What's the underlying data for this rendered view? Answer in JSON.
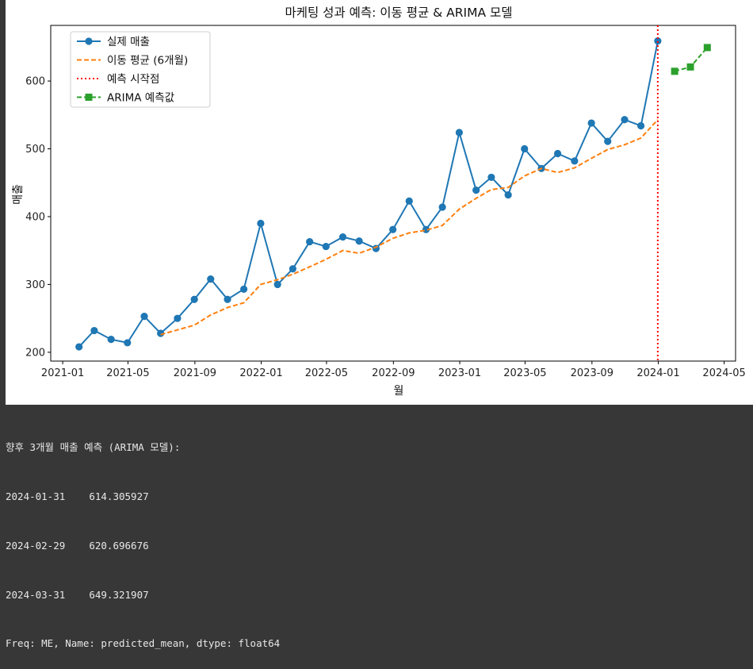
{
  "chart_data": {
    "type": "line",
    "title": "마케팅 성과 예측: 이동 평균 & ARIMA 모델",
    "xlabel": "월",
    "ylabel": "매출",
    "xlim": [
      "2020-12-10",
      "2024-05-22"
    ],
    "ylim": [
      187,
      682
    ],
    "x_ticks": [
      "2021-01",
      "2021-05",
      "2021-09",
      "2022-01",
      "2022-05",
      "2022-09",
      "2023-01",
      "2023-05",
      "2023-09",
      "2024-01",
      "2024-05"
    ],
    "y_ticks": [
      200,
      300,
      400,
      500,
      600
    ],
    "grid": false,
    "legend_position": "top-left",
    "forecast_start": "2023-12-31",
    "series": [
      {
        "name": "실제 매출",
        "color": "#1f77b4",
        "style": "solid-circle",
        "x": [
          "2021-01-31",
          "2021-02-28",
          "2021-03-31",
          "2021-04-30",
          "2021-05-31",
          "2021-06-30",
          "2021-07-31",
          "2021-08-31",
          "2021-09-30",
          "2021-10-31",
          "2021-11-30",
          "2021-12-31",
          "2022-01-31",
          "2022-02-28",
          "2022-03-31",
          "2022-04-30",
          "2022-05-31",
          "2022-06-30",
          "2022-07-31",
          "2022-08-31",
          "2022-09-30",
          "2022-10-31",
          "2022-11-30",
          "2022-12-31",
          "2023-01-31",
          "2023-02-28",
          "2023-03-31",
          "2023-04-30",
          "2023-05-31",
          "2023-06-30",
          "2023-07-31",
          "2023-08-31",
          "2023-09-30",
          "2023-10-31",
          "2023-11-30",
          "2023-12-31"
        ],
        "y": [
          208,
          232,
          219,
          214,
          253,
          228,
          250,
          278,
          308,
          278,
          293,
          390,
          300,
          323,
          363,
          356,
          370,
          364,
          353,
          381,
          423,
          381,
          414,
          524,
          439,
          458,
          432,
          500,
          471,
          493,
          482,
          538,
          511,
          543,
          534,
          659
        ]
      },
      {
        "name": "이동 평균 (6개월)",
        "color": "#ff7f0e",
        "style": "dashed",
        "x": [
          "2021-06-30",
          "2021-07-31",
          "2021-08-31",
          "2021-09-30",
          "2021-10-31",
          "2021-11-30",
          "2021-12-31",
          "2022-01-31",
          "2022-02-28",
          "2022-03-31",
          "2022-04-30",
          "2022-05-31",
          "2022-06-30",
          "2022-07-31",
          "2022-08-31",
          "2022-09-30",
          "2022-10-31",
          "2022-11-30",
          "2022-12-31",
          "2023-01-31",
          "2023-02-28",
          "2023-03-31",
          "2023-04-30",
          "2023-05-31",
          "2023-06-30",
          "2023-07-31",
          "2023-08-31",
          "2023-09-30",
          "2023-10-31",
          "2023-11-30",
          "2023-12-31"
        ],
        "y": [
          226,
          233,
          240,
          255,
          266,
          273,
          300,
          307,
          315,
          326,
          337,
          350,
          346,
          355,
          368,
          376,
          380,
          387,
          411,
          427,
          440,
          443,
          460,
          471,
          465,
          472,
          486,
          499,
          506,
          516,
          543
        ]
      },
      {
        "name": "예측 시작점",
        "color": "#ff0000",
        "style": "dotted-vertical"
      },
      {
        "name": "ARIMA 예측값",
        "color": "#2ca02c",
        "style": "dashed-square",
        "x": [
          "2024-01-31",
          "2024-02-29",
          "2024-03-31"
        ],
        "y": [
          614.305927,
          620.696676,
          649.321907
        ]
      }
    ]
  },
  "console": {
    "lines": [
      "향후 3개월 매출 예측 (ARIMA 모델):",
      "2024-01-31    614.305927",
      "2024-02-29    620.696676",
      "2024-03-31    649.321907",
      "Freq: ME, Name: predicted_mean, dtype: float64"
    ]
  }
}
